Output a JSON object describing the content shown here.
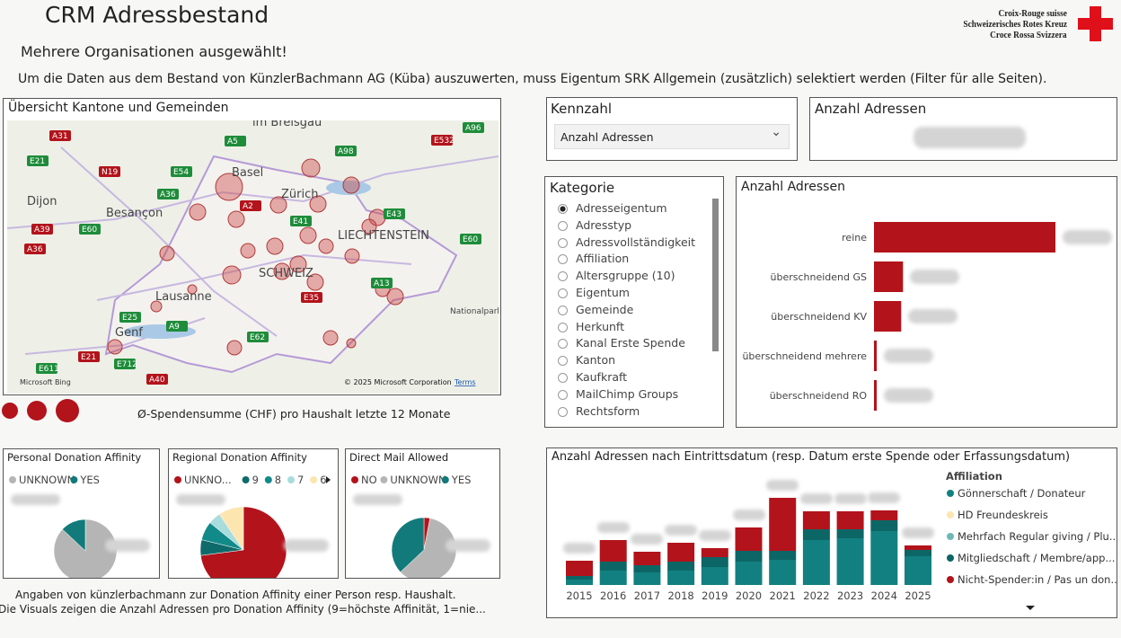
{
  "header": {
    "title": "CRM Adressbestand",
    "subtitle": "Mehrere Organisationen ausgewählt!",
    "notice": "Um die Daten aus dem Bestand von KünzlerBachmann AG (Küba) auszuwerten, muss Eigentum SRK Allgemein (zusätzlich) selektiert werden (Filter für alle Seiten).",
    "logo": [
      "Croix-Rouge suisse",
      "Schweizerisches Rotes Kreuz",
      "Croce Rossa Svizzera"
    ]
  },
  "map": {
    "title": "Übersicht Kantone und Gemeinden",
    "places": [
      "im Breisgau",
      "Basel",
      "Zürich",
      "Dijon",
      "Besançon",
      "LIECHTENSTEIN",
      "SCHWEIZ",
      "Lausanne",
      "Genf",
      "Nationalpark Stelvio"
    ],
    "roads": [
      "A31",
      "A5",
      "A98",
      "E532",
      "A96",
      "E21",
      "N19",
      "E54",
      "A36",
      "A2",
      "E41",
      "E43",
      "A39",
      "E60",
      "E60",
      "A36",
      "A13",
      "E25",
      "E35",
      "A9",
      "E62",
      "E21",
      "E712",
      "E611",
      "A40"
    ],
    "attribution": "© 2025 Microsoft Corporation",
    "terms": "Terms",
    "brand": "Microsoft Bing",
    "legend_title": "Ø-Spendensumme (CHF) pro Haushalt letzte 12 Monate"
  },
  "kennzahl": {
    "title": "Kennzahl",
    "selected": "Anzahl Adressen"
  },
  "card": {
    "title": "Anzahl Adressen"
  },
  "kategorie": {
    "title": "Kategorie",
    "items": [
      "Adresseigentum",
      "Adresstyp",
      "Adressvollständigkeit",
      "Affiliation",
      "Altersgruppe (10)",
      "Eigentum",
      "Gemeinde",
      "Herkunft",
      "Kanal Erste Spende",
      "Kanton",
      "Kaufkraft",
      "MailChimp Groups",
      "Rechtsform"
    ]
  },
  "footnote": [
    "Angaben von künzlerbachmann zur Donation Affinity einer Person resp. Haushalt.",
    "Die Visuals zeigen die Anzahl Adressen pro Donation Affinity (9=höchste Affinität, 1=nie..."
  ],
  "chart_data": [
    {
      "type": "hbar",
      "title": "Anzahl Adressen",
      "categories": [
        "reine",
        "überschneidend GS",
        "überschneidend KV",
        "überschneidend mehrere",
        "überschneidend RO"
      ],
      "values": [
        100,
        16,
        15,
        1.5,
        1.5
      ],
      "color": "#b3131b"
    },
    {
      "type": "pie",
      "title": "Personal Donation Affinity",
      "series": [
        {
          "name": "UNKNOWN",
          "color": "#b5b5b5",
          "values": [
            87
          ]
        },
        {
          "name": "YES",
          "color": "#127a7a",
          "values": [
            13
          ]
        }
      ]
    },
    {
      "type": "pie",
      "title": "Regional Donation Affinity",
      "series": [
        {
          "name": "UNKNO...",
          "color": "#b3131b",
          "values": [
            62
          ]
        },
        {
          "name": "9",
          "color": "#0f6b6b",
          "values": [
            5
          ]
        },
        {
          "name": "8",
          "color": "#138a8a",
          "values": [
            6
          ]
        },
        {
          "name": "7",
          "color": "#a9dcdc",
          "values": [
            4
          ]
        },
        {
          "name": "6",
          "color": "#fde5b0",
          "values": [
            8
          ]
        }
      ]
    },
    {
      "type": "pie",
      "title": "Direct Mail Allowed",
      "series": [
        {
          "name": "NO",
          "color": "#b3131b",
          "values": [
            3
          ]
        },
        {
          "name": "UNKNOWN",
          "color": "#b5b5b5",
          "values": [
            60
          ]
        },
        {
          "name": "YES",
          "color": "#127a7a",
          "values": [
            37
          ]
        }
      ]
    },
    {
      "type": "stacked_bar",
      "title": "Anzahl Adressen nach Eintrittsdatum (resp. Datum erste Spende oder Erfassungsdatum)",
      "legend_title": "Affiliation",
      "categories": [
        "2015",
        "2016",
        "2017",
        "2018",
        "2019",
        "2020",
        "2021",
        "2022",
        "2023",
        "2024",
        "2025"
      ],
      "series": [
        {
          "name": "Gönnerschaft / Donateur",
          "color": "#128080",
          "values": [
            6,
            16,
            14,
            16,
            20,
            26,
            28,
            50,
            52,
            60,
            32
          ]
        },
        {
          "name": "HD Freundeskreis",
          "color": "#fde5b0",
          "values": [
            0,
            0,
            0,
            0,
            0,
            0,
            0,
            0,
            0,
            0,
            0
          ]
        },
        {
          "name": "Mehrfach Regular giving / Plu...",
          "color": "#6fb8b8",
          "values": [
            0,
            0,
            0,
            0,
            0,
            0,
            0,
            0,
            0,
            0,
            0
          ]
        },
        {
          "name": "Mitgliedschaft / Membre/app...",
          "color": "#0d6666",
          "values": [
            4,
            10,
            8,
            10,
            11,
            12,
            10,
            12,
            10,
            12,
            7
          ]
        },
        {
          "name": "Nicht-Spender:in / Pas un don...",
          "color": "#b3131b",
          "values": [
            17,
            24,
            15,
            21,
            10,
            26,
            59,
            20,
            20,
            11,
            5
          ]
        }
      ]
    }
  ]
}
